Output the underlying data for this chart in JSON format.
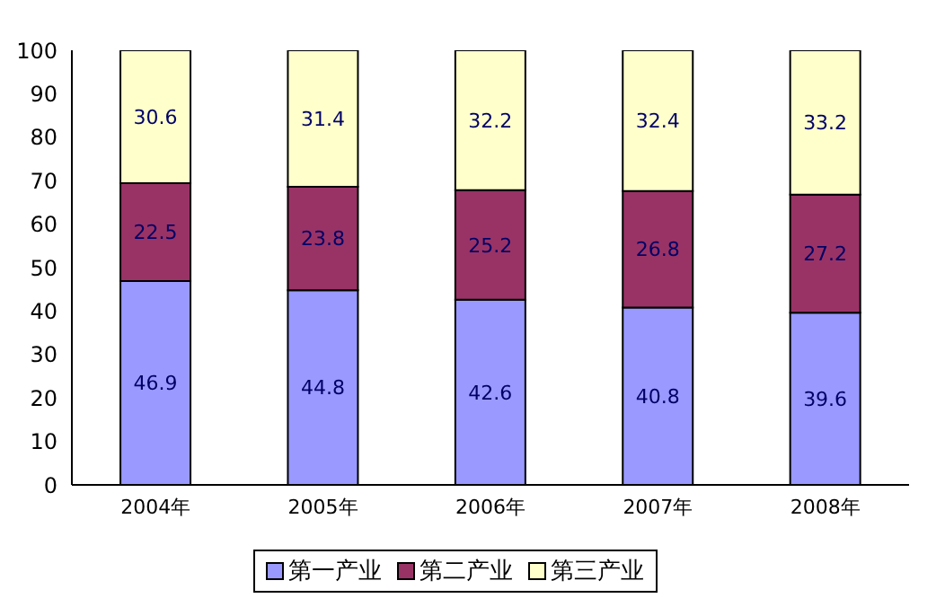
{
  "chart_data": {
    "type": "bar",
    "stacked": true,
    "categories": [
      "2004年",
      "2005年",
      "2006年",
      "2007年",
      "2008年"
    ],
    "series": [
      {
        "name": "第一产业",
        "color": "#9999ff",
        "values": [
          46.9,
          44.8,
          42.6,
          40.8,
          39.6
        ]
      },
      {
        "name": "第二产业",
        "color": "#993366",
        "values": [
          22.5,
          23.8,
          25.2,
          26.8,
          27.2
        ]
      },
      {
        "name": "第三产业",
        "color": "#ffffcc",
        "values": [
          30.6,
          31.4,
          32.2,
          32.4,
          33.2
        ]
      }
    ],
    "ylim": [
      0,
      100
    ],
    "yticks": [
      0,
      10,
      20,
      30,
      40,
      50,
      60,
      70,
      80,
      90,
      100
    ],
    "data_labels": true,
    "legend": "bottom",
    "grid": false
  }
}
